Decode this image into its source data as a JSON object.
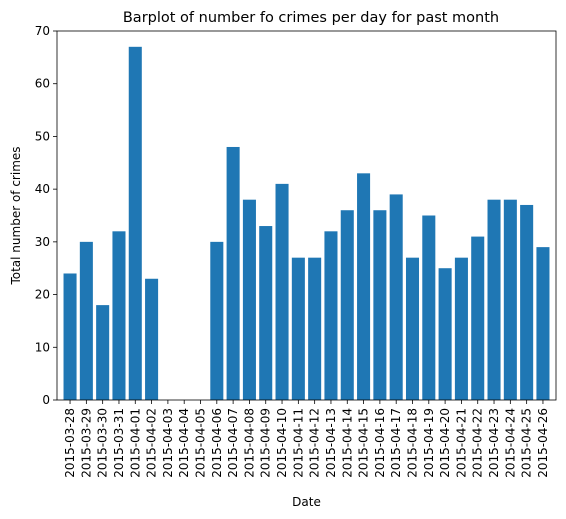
{
  "chart_data": {
    "type": "bar",
    "title": "Barplot of number fo crimes per day for past month",
    "xlabel": "Date",
    "ylabel": "Total number of crimes",
    "ylim": [
      0,
      70
    ],
    "yticks": [
      0,
      10,
      20,
      30,
      40,
      50,
      60,
      70
    ],
    "grid": false,
    "bar_color": "#1f77b4",
    "categories": [
      "2015-03-28",
      "2015-03-29",
      "2015-03-30",
      "2015-03-31",
      "2015-04-01",
      "2015-04-02",
      "2015-04-03",
      "2015-04-04",
      "2015-04-05",
      "2015-04-06",
      "2015-04-07",
      "2015-04-08",
      "2015-04-09",
      "2015-04-10",
      "2015-04-11",
      "2015-04-12",
      "2015-04-13",
      "2015-04-14",
      "2015-04-15",
      "2015-04-16",
      "2015-04-17",
      "2015-04-18",
      "2015-04-19",
      "2015-04-20",
      "2015-04-21",
      "2015-04-22",
      "2015-04-23",
      "2015-04-24",
      "2015-04-25",
      "2015-04-26"
    ],
    "values": [
      24,
      30,
      18,
      32,
      67,
      23,
      0,
      0,
      0,
      30,
      48,
      38,
      33,
      41,
      27,
      27,
      32,
      36,
      43,
      36,
      39,
      27,
      35,
      25,
      27,
      31,
      38,
      38,
      37,
      29
    ]
  }
}
